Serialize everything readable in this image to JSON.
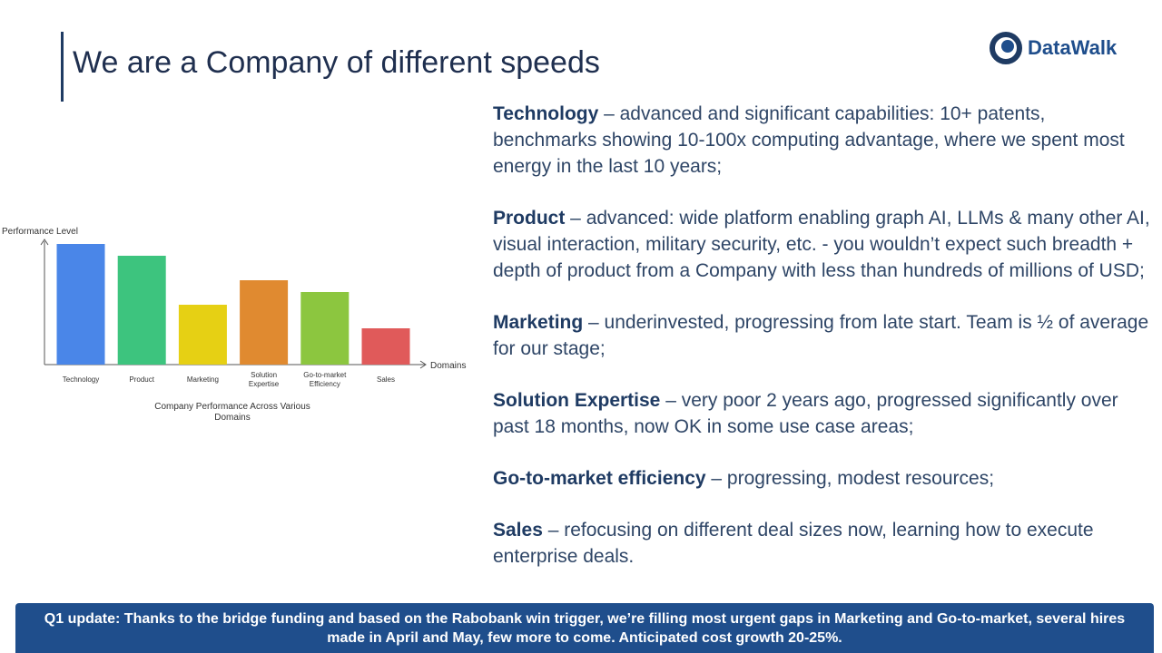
{
  "slide": {
    "title": "We are a Company of different speeds",
    "logo": "DataWalk",
    "points": [
      {
        "heading": "Technology",
        "text": " –  advanced and significant capabilities: 10+ patents, benchmarks showing 10-100x computing advantage, where we spent most energy in the last 10 years;"
      },
      {
        "heading": "Product",
        "text": " – advanced: wide platform enabling graph AI, LLMs & many other AI, visual interaction, military security, etc. - you wouldn’t expect such breadth + depth of product from a Company with less than hundreds of millions of USD;"
      },
      {
        "heading": "Marketing",
        "text": " – underinvested, progressing from late start. Team is ½ of average for our stage;"
      },
      {
        "heading": "Solution Expertise",
        "text": " – very poor 2 years ago, progressed significantly over past 18 months, now OK in some use case areas;"
      },
      {
        "heading": "Go-to-market efficiency",
        "text": " – progressing, modest resources;"
      },
      {
        "heading": "Sales",
        "text": " – refocusing on different deal sizes now, learning how to execute enterprise deals."
      }
    ],
    "banner": "Q1 update: Thanks to the bridge funding and based on the Rabobank win trigger, we’re filling most urgent gaps in Marketing and Go-to-market, several hires made in April and May, few more to come. Anticipated cost growth 20-25%."
  },
  "chart_data": {
    "type": "bar",
    "title": "Company Performance Across Various Domains",
    "y_label": "Performance Level",
    "x_label": "Domains",
    "categories": [
      "Technology",
      "Product",
      "Marketing",
      "Solution Expertise",
      "Go-to-market Efficiency",
      "Sales"
    ],
    "values": [
      133,
      120,
      66,
      93,
      80,
      40
    ],
    "colors": [
      "#4a86e8",
      "#3dc47e",
      "#e6d014",
      "#e08a30",
      "#8cc63f",
      "#e05a5a"
    ],
    "ylim": [
      0,
      137
    ]
  }
}
